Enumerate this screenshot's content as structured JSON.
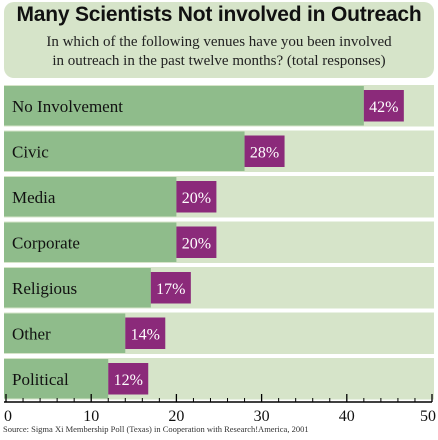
{
  "chart_data": {
    "type": "bar",
    "orientation": "horizontal",
    "title": "Many Scientists Not involved in Outreach",
    "subtitle": [
      "In which of the following venues have you been involved",
      "in outreach in the past twelve months? (total responses)"
    ],
    "categories": [
      "No Involvement",
      "Civic",
      "Media",
      "Corporate",
      "Religious",
      "Other",
      "Political"
    ],
    "values": [
      42,
      28,
      20,
      20,
      17,
      14,
      12
    ],
    "value_labels": [
      "42%",
      "28%",
      "20%",
      "20%",
      "17%",
      "14%",
      "12%"
    ],
    "xlim": [
      0,
      50
    ],
    "xticks": [
      "0",
      "10",
      "20",
      "30",
      "40",
      "50"
    ],
    "source": "Source: Sigma Xi Membership Poll (Texas) in Cooperation with Research!America, 2001",
    "colors": {
      "bar": "#8fbc8b",
      "row_band": "#d6e4c9",
      "label_box": "#8b2a7a",
      "label_text": "#ffffff",
      "header": "#d6e4c9"
    }
  }
}
